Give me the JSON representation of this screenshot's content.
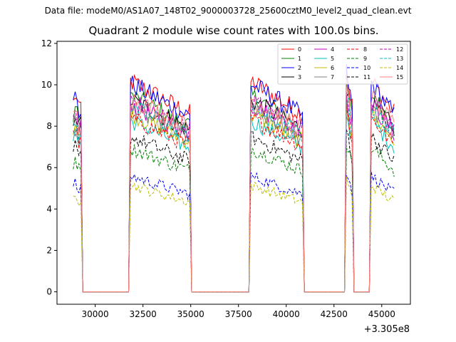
{
  "header": {
    "file_label": "Data file: modeM0/AS1A07_148T02_9000003728_25600cztM0_level2_quad_clean.evt"
  },
  "chart_data": {
    "type": "line",
    "title": "Quadrant 2 module wise count rates with 100.0s bins.",
    "xlabel": "",
    "ylabel": "",
    "x_offset_label": "+3.305e8",
    "xlim": [
      28000,
      46500
    ],
    "ylim": [
      -0.6,
      12.1
    ],
    "x_ticks": [
      30000,
      32500,
      35000,
      37500,
      40000,
      42500,
      45000
    ],
    "x_tick_labels": [
      "30000",
      "32500",
      "35000",
      "37500",
      "40000",
      "42500",
      "45000"
    ],
    "y_ticks": [
      0,
      2,
      4,
      6,
      8,
      10,
      12
    ],
    "y_tick_labels": [
      "0",
      "2",
      "4",
      "6",
      "8",
      "10",
      "12"
    ],
    "segments": [
      {
        "start": 28850,
        "end": 29250
      },
      {
        "start": 31800,
        "end": 35000
      },
      {
        "start": 38100,
        "end": 40900
      },
      {
        "start": 43150,
        "end": 43450
      },
      {
        "start": 44450,
        "end": 45700
      }
    ],
    "gap_start_values": {
      "28850": "low"
    },
    "legend_position": "upper right",
    "series": [
      {
        "name": "0",
        "color": "#ff0000",
        "dash": "solid",
        "level": 9.1
      },
      {
        "name": "1",
        "color": "#008000",
        "dash": "solid",
        "level": 8.5
      },
      {
        "name": "2",
        "color": "#0000ff",
        "dash": "solid",
        "level": 9.0
      },
      {
        "name": "3",
        "color": "#000000",
        "dash": "solid",
        "level": 8.3
      },
      {
        "name": "4",
        "color": "#bf00bf",
        "dash": "solid",
        "level": 8.1
      },
      {
        "name": "5",
        "color": "#00bfbf",
        "dash": "solid",
        "level": 7.4
      },
      {
        "name": "6",
        "color": "#bfbf00",
        "dash": "solid",
        "level": 7.7
      },
      {
        "name": "7",
        "color": "#808080",
        "dash": "solid",
        "level": 7.9
      },
      {
        "name": "8",
        "color": "#ff0000",
        "dash": "dashed",
        "level": 7.5
      },
      {
        "name": "9",
        "color": "#008000",
        "dash": "dashed",
        "level": 6.2
      },
      {
        "name": "10",
        "color": "#0000ff",
        "dash": "dashed",
        "level": 5.0
      },
      {
        "name": "11",
        "color": "#000000",
        "dash": "dashed",
        "level": 6.7
      },
      {
        "name": "12",
        "color": "#bf00bf",
        "dash": "dashed",
        "level": 8.3
      },
      {
        "name": "13",
        "color": "#00bfbf",
        "dash": "dashed",
        "level": 8.0
      },
      {
        "name": "14",
        "color": "#bfbf00",
        "dash": "dashed",
        "level": 4.6
      },
      {
        "name": "15",
        "color": "#ff7f7f",
        "dash": "solid",
        "level": 8.4
      }
    ]
  }
}
